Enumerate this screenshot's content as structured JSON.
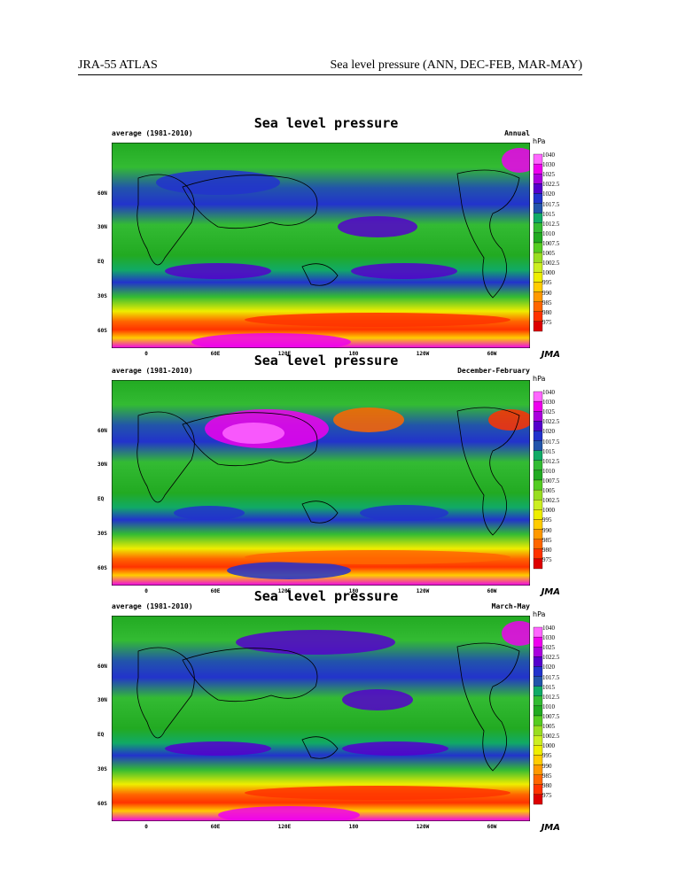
{
  "header": {
    "left": "JRA-55 ATLAS",
    "right": "Sea level pressure (ANN, DEC-FEB, MAR-MAY)"
  },
  "colorbar": {
    "unit": "hPa",
    "levels": [
      "1040",
      "1030",
      "1025",
      "1022.5",
      "1020",
      "1017.5",
      "1015",
      "1012.5",
      "1010",
      "1007.5",
      "1005",
      "1002.5",
      "1000",
      "995",
      "990",
      "985",
      "980",
      "975"
    ],
    "colors": [
      "#ff66ff",
      "#ee00ee",
      "#aa00dd",
      "#5500cc",
      "#2233cc",
      "#2255aa",
      "#11aa66",
      "#33bb33",
      "#22aa22",
      "#55cc22",
      "#99dd22",
      "#ccee22",
      "#eeee00",
      "#ffcc00",
      "#ff9900",
      "#ff6600",
      "#ff3300",
      "#dd0000"
    ]
  },
  "lat_labels": [
    "60N",
    "30N",
    "EQ",
    "30S",
    "60S"
  ],
  "lon_labels": [
    "0",
    "60E",
    "120E",
    "180",
    "120W",
    "60W"
  ],
  "panels": [
    {
      "title": "Sea level pressure",
      "subtitle": "average (1981-2010)",
      "season": "Annual",
      "logo": "JMA"
    },
    {
      "title": "Sea level pressure",
      "subtitle": "average (1981-2010)",
      "season": "December-February",
      "logo": "JMA"
    },
    {
      "title": "Sea level pressure",
      "subtitle": "average (1981-2010)",
      "season": "March-May",
      "logo": "JMA"
    }
  ]
}
